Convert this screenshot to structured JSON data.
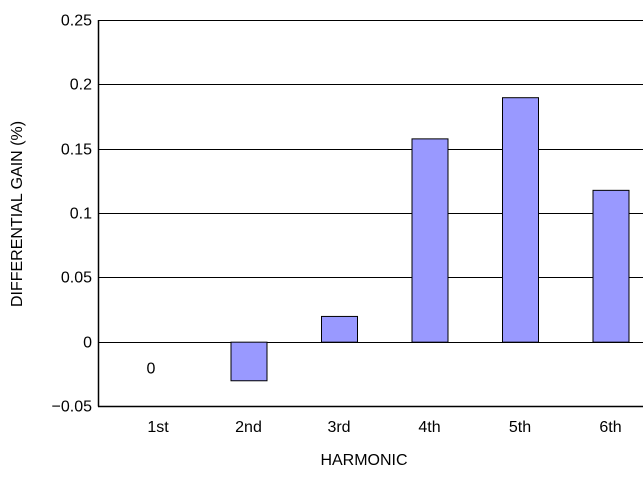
{
  "chart_data": {
    "type": "bar",
    "xlabel": "HARMONIC",
    "ylabel": "DIFFERENTIAL GAIN (%)",
    "categories": [
      "1st",
      "2nd",
      "3rd",
      "4th",
      "5th",
      "6th"
    ],
    "values": [
      0,
      -0.03,
      0.02,
      0.158,
      0.19,
      0.118
    ],
    "ylim": [
      -0.05,
      0.25
    ],
    "yticks": [
      -0.05,
      0,
      0.05,
      0.1,
      0.15,
      0.2,
      0.25
    ],
    "ytick_labels": [
      "−0.05",
      "0",
      "0.05",
      "0.1",
      "0.15",
      "0.2",
      "0.25"
    ],
    "grid": true,
    "data_labels": [
      {
        "category": "1st",
        "text": "0"
      }
    ],
    "colors": {
      "bar_fill": "#9999ff",
      "bar_stroke": "#000000",
      "grid": "#000000"
    }
  }
}
